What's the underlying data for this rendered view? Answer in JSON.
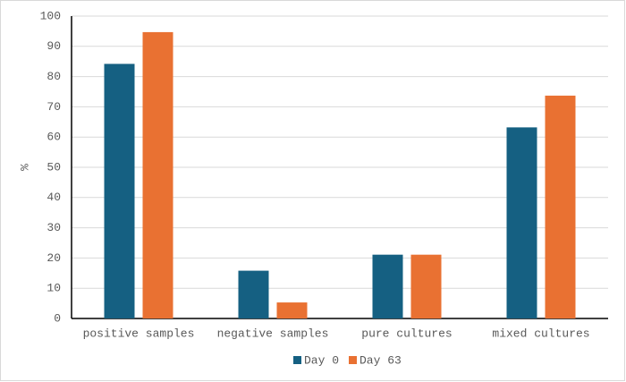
{
  "chart_data": {
    "type": "bar",
    "y_label": "%",
    "categories": [
      "positive samples",
      "negative samples",
      "pure cultures",
      "mixed cultures"
    ],
    "series": [
      {
        "name": "Day 0",
        "color": "#156082",
        "values": [
          84.2,
          15.8,
          21.1,
          63.2
        ]
      },
      {
        "name": "Day 63",
        "color": "#e97132",
        "values": [
          94.7,
          5.3,
          21.1,
          73.7
        ]
      }
    ],
    "ylim": [
      0,
      100
    ],
    "yticks": [
      0,
      10,
      20,
      30,
      40,
      50,
      60,
      70,
      80,
      90,
      100
    ],
    "grid": true,
    "legend": "bottom"
  }
}
